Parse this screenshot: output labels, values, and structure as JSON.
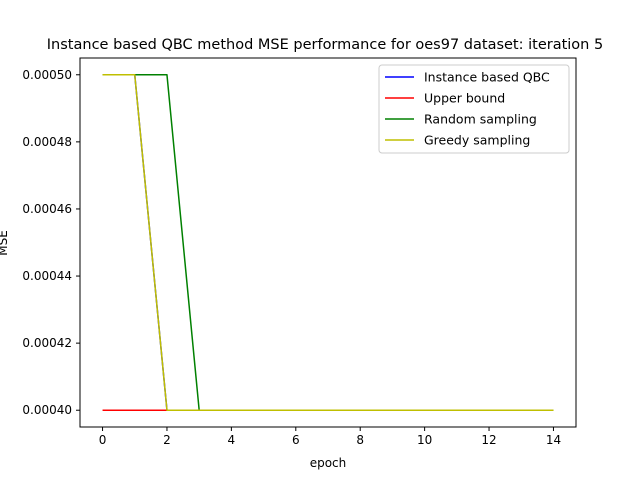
{
  "chart_data": {
    "type": "line",
    "title": "Instance based QBC method MSE performance for oes97 dataset: iteration 5",
    "xlabel": "epoch",
    "ylabel": "MSE",
    "xlim": [
      -0.7,
      14.7
    ],
    "ylim": [
      0.000395,
      0.000505
    ],
    "xticks": [
      0,
      2,
      4,
      6,
      8,
      10,
      12,
      14
    ],
    "xtick_labels": [
      "0",
      "2",
      "4",
      "6",
      "8",
      "10",
      "12",
      "14"
    ],
    "yticks": [
      0.0004,
      0.00042,
      0.00044,
      0.00046,
      0.00048,
      0.0005
    ],
    "ytick_labels": [
      "0.00040",
      "0.00042",
      "0.00044",
      "0.00046",
      "0.00048",
      "0.00050"
    ],
    "grid": false,
    "legend_position": "upper right",
    "x": [
      0,
      1,
      2,
      3,
      4,
      5,
      6,
      7,
      8,
      9,
      10,
      11,
      12,
      13,
      14
    ],
    "series": [
      {
        "name": "Instance based QBC",
        "color": "#0000ff",
        "values": [
          0.0005,
          0.0005,
          0.0004,
          0.0004,
          0.0004,
          0.0004,
          0.0004,
          0.0004,
          0.0004,
          0.0004,
          0.0004,
          0.0004,
          0.0004,
          0.0004,
          0.0004
        ]
      },
      {
        "name": "Upper bound",
        "color": "#ff0000",
        "values": [
          0.0004,
          0.0004,
          0.0004,
          0.0004,
          0.0004,
          0.0004,
          0.0004,
          0.0004,
          0.0004,
          0.0004,
          0.0004,
          0.0004,
          0.0004,
          0.0004,
          0.0004
        ]
      },
      {
        "name": "Random sampling",
        "color": "#008000",
        "values": [
          0.0005,
          0.0005,
          0.0005,
          0.0004,
          0.0004,
          0.0004,
          0.0004,
          0.0004,
          0.0004,
          0.0004,
          0.0004,
          0.0004,
          0.0004,
          0.0004,
          0.0004
        ]
      },
      {
        "name": "Greedy sampling",
        "color": "#bfbf00",
        "values": [
          0.0005,
          0.0005,
          0.0004,
          0.0004,
          0.0004,
          0.0004,
          0.0004,
          0.0004,
          0.0004,
          0.0004,
          0.0004,
          0.0004,
          0.0004,
          0.0004,
          0.0004
        ]
      }
    ]
  }
}
